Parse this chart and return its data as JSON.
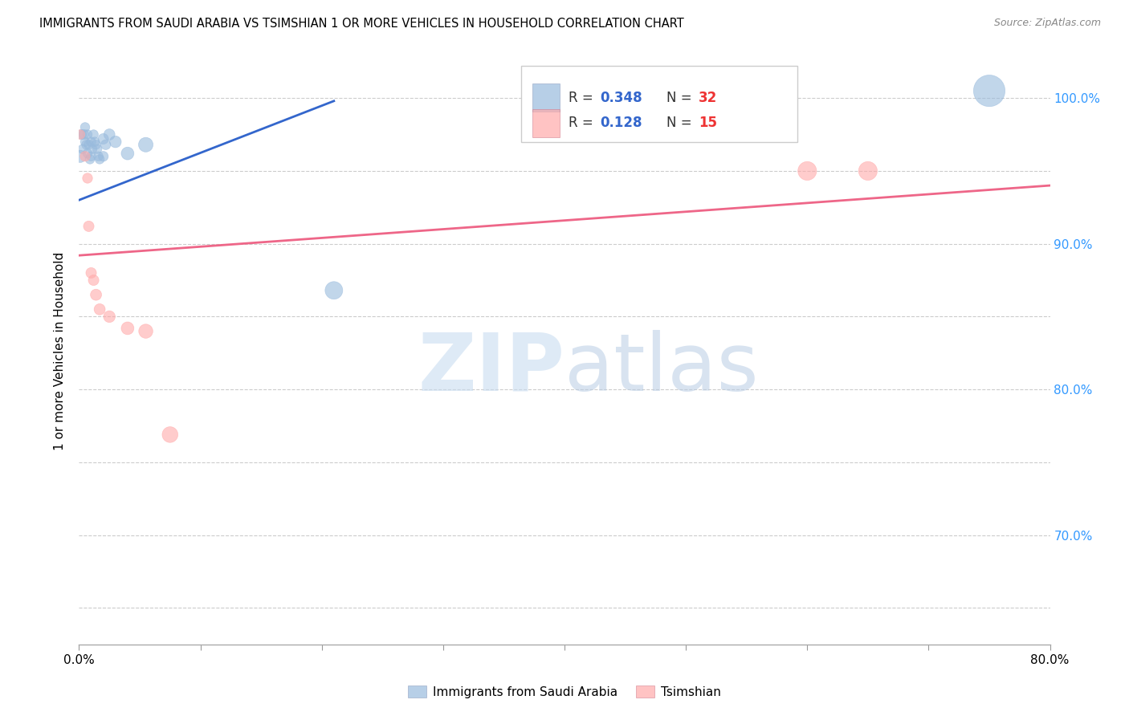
{
  "title": "IMMIGRANTS FROM SAUDI ARABIA VS TSIMSHIAN 1 OR MORE VEHICLES IN HOUSEHOLD CORRELATION CHART",
  "source": "Source: ZipAtlas.com",
  "ylabel": "1 or more Vehicles in Household",
  "x_min": 0.0,
  "x_max": 0.8,
  "y_min": 0.625,
  "y_max": 1.028,
  "blue_color": "#99BBDD",
  "pink_color": "#FFAAAA",
  "blue_line_color": "#3366CC",
  "pink_line_color": "#EE6688",
  "grid_color": "#CCCCCC",
  "background_color": "#FFFFFF",
  "blue_R": "0.348",
  "blue_N": "32",
  "pink_R": "0.128",
  "pink_N": "15",
  "legend_text_color": "#3366CC",
  "legend_N_color": "#EE3333",
  "watermark_zip": "ZIP",
  "watermark_atlas": "atlas",
  "blue_scatter_x": [
    0.001,
    0.002,
    0.003,
    0.004,
    0.005,
    0.005,
    0.006,
    0.007,
    0.007,
    0.008,
    0.009,
    0.01,
    0.01,
    0.011,
    0.012,
    0.013,
    0.014,
    0.015,
    0.016,
    0.017,
    0.02,
    0.02,
    0.022,
    0.025,
    0.03,
    0.04,
    0.055,
    0.21,
    0.75
  ],
  "blue_scatter_y": [
    0.96,
    0.975,
    0.965,
    0.975,
    0.97,
    0.98,
    0.968,
    0.975,
    0.962,
    0.968,
    0.958,
    0.97,
    0.96,
    0.965,
    0.975,
    0.97,
    0.968,
    0.965,
    0.96,
    0.958,
    0.972,
    0.96,
    0.968,
    0.975,
    0.97,
    0.962,
    0.968,
    0.868,
    1.005
  ],
  "blue_scatter_sizes": [
    120,
    80,
    70,
    80,
    70,
    70,
    70,
    70,
    70,
    70,
    70,
    70,
    70,
    70,
    70,
    70,
    70,
    70,
    70,
    70,
    90,
    80,
    80,
    100,
    110,
    130,
    170,
    250,
    800
  ],
  "pink_scatter_x": [
    0.001,
    0.005,
    0.007,
    0.008,
    0.01,
    0.012,
    0.014,
    0.017,
    0.025,
    0.04,
    0.055,
    0.075,
    0.6,
    0.65
  ],
  "pink_scatter_y": [
    0.975,
    0.96,
    0.945,
    0.912,
    0.88,
    0.875,
    0.865,
    0.855,
    0.85,
    0.842,
    0.84,
    0.769,
    0.95,
    0.95
  ],
  "pink_scatter_sizes": [
    70,
    80,
    80,
    90,
    90,
    90,
    100,
    100,
    110,
    130,
    160,
    200,
    280,
    280
  ],
  "blue_line_x": [
    0.0,
    0.21
  ],
  "blue_line_y": [
    0.93,
    0.998
  ],
  "pink_line_x": [
    0.0,
    0.8
  ],
  "pink_line_y": [
    0.892,
    0.94
  ],
  "y_ticks": [
    0.65,
    0.7,
    0.75,
    0.8,
    0.85,
    0.9,
    0.95,
    1.0
  ],
  "y_tick_labels_right": [
    "",
    "70.0%",
    "",
    "80.0%",
    "",
    "90.0%",
    "",
    "100.0%"
  ],
  "x_ticks": [
    0.0,
    0.1,
    0.2,
    0.3,
    0.4,
    0.5,
    0.6,
    0.7,
    0.8
  ],
  "x_tick_labels": [
    "0.0%",
    "",
    "",
    "",
    "",
    "",
    "",
    "",
    "80.0%"
  ]
}
